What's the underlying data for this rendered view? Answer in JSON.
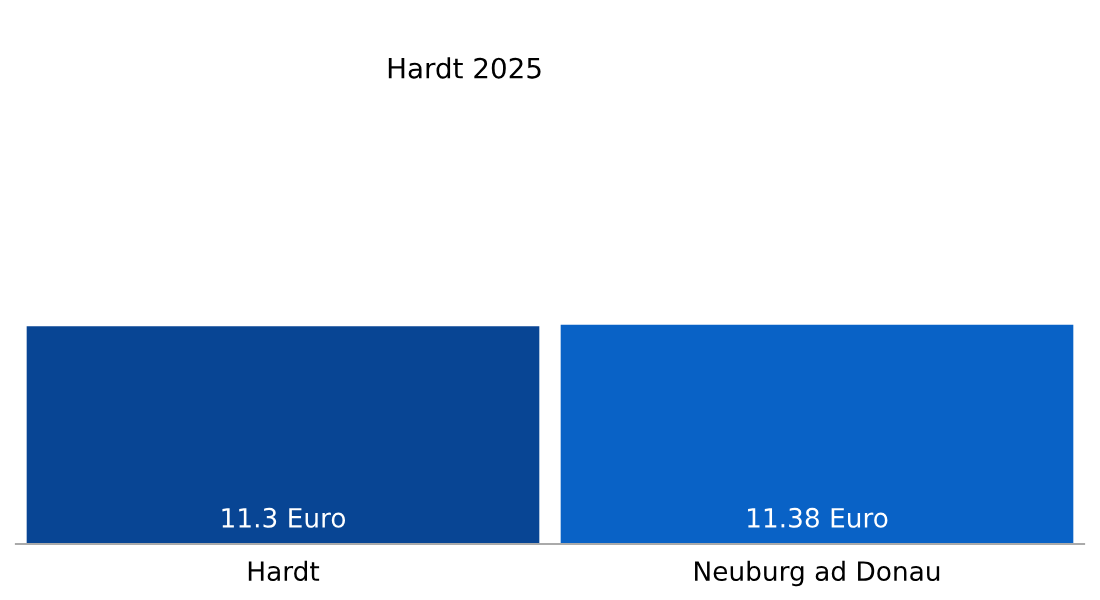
{
  "chart_data": {
    "type": "bar",
    "title": "Hardt 2025",
    "categories": [
      "Hardt",
      "Neuburg ad Donau"
    ],
    "values": [
      11.3,
      11.38
    ],
    "colors": [
      "#084594",
      "#0962c6"
    ],
    "value_labels": [
      "11.3 Euro",
      "11.38 Euro"
    ],
    "grid": false,
    "legend": false
  }
}
